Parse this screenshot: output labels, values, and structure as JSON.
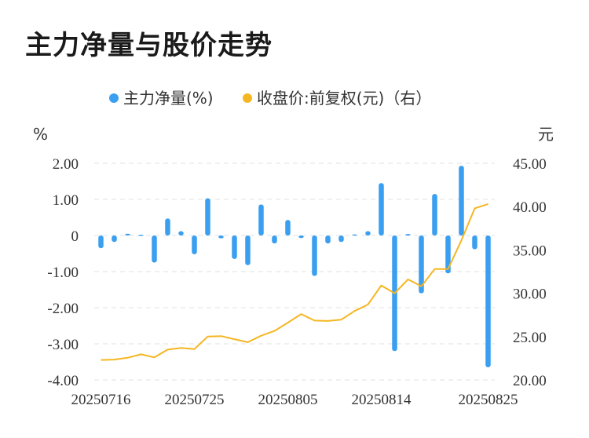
{
  "page_title": "主力净量与股价走势",
  "chart_data": {
    "type": "bar",
    "legend_position": "top-center",
    "grid": true,
    "left_unit": "%",
    "right_unit": "元",
    "y_left_range": [
      -4,
      2
    ],
    "y_left_ticks": [
      "2.00",
      "1.00",
      "0",
      "-1.00",
      "-2.00",
      "-3.00",
      "-4.00"
    ],
    "y_right_range": [
      20,
      45
    ],
    "y_right_ticks": [
      "45.00",
      "40.00",
      "35.00",
      "30.00",
      "25.00",
      "20.00"
    ],
    "x_tick_labels": [
      "20250716",
      "20250725",
      "20250805",
      "20250814",
      "20250825"
    ],
    "x_tick_indices": [
      0,
      7,
      14,
      21,
      29
    ],
    "colors": {
      "bar": "#3a9ff0",
      "line": "#f5b622",
      "grid": "#e6e6e6"
    },
    "series": [
      {
        "name": "主力净量(%)",
        "kind": "bar",
        "axis": "left",
        "values": [
          -0.35,
          -0.18,
          0.05,
          0.02,
          -0.75,
          0.47,
          0.12,
          -0.52,
          1.03,
          -0.08,
          -0.65,
          -0.82,
          0.86,
          -0.22,
          0.43,
          -0.07,
          -1.12,
          -0.22,
          -0.18,
          0.03,
          0.12,
          1.45,
          -3.2,
          0.04,
          -1.6,
          1.15,
          -1.05,
          1.93,
          -0.38,
          -3.65
        ]
      },
      {
        "name": "收盘价:前复权(元)（右）",
        "kind": "line",
        "axis": "right",
        "values": [
          22.3,
          22.35,
          22.55,
          22.95,
          22.6,
          23.5,
          23.7,
          23.55,
          25.0,
          25.05,
          24.7,
          24.35,
          25.1,
          25.65,
          26.6,
          27.6,
          26.85,
          26.8,
          26.95,
          27.95,
          28.7,
          30.9,
          30.0,
          31.6,
          30.8,
          32.8,
          32.8,
          36.1,
          39.8,
          40.3
        ]
      }
    ]
  }
}
